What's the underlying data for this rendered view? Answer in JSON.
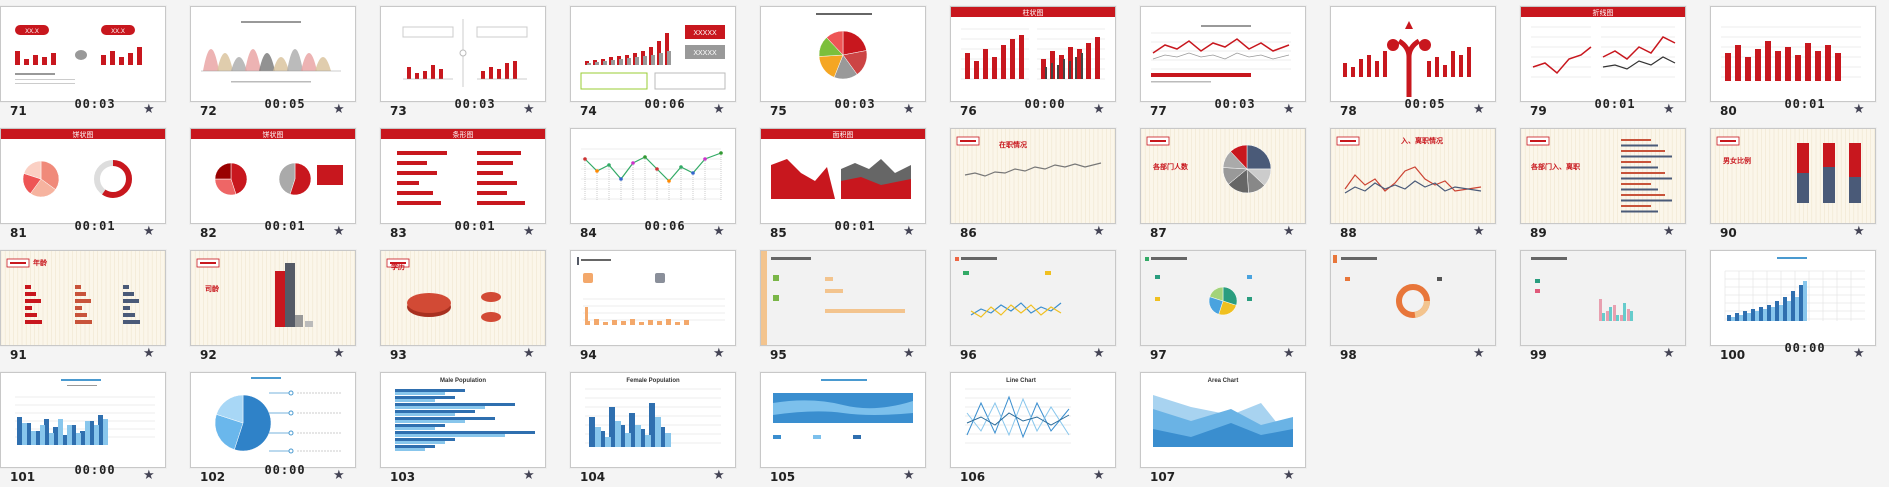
{
  "slides": [
    {
      "num": "71",
      "time": "00:03"
    },
    {
      "num": "72",
      "time": "00:05"
    },
    {
      "num": "73",
      "time": "00:03"
    },
    {
      "num": "74",
      "time": "00:06"
    },
    {
      "num": "75",
      "time": "00:03"
    },
    {
      "num": "76",
      "time": "00:00"
    },
    {
      "num": "77",
      "time": "00:03"
    },
    {
      "num": "78",
      "time": "00:05"
    },
    {
      "num": "79",
      "time": "00:01"
    },
    {
      "num": "80",
      "time": "00:01"
    },
    {
      "num": "81",
      "time": "00:01"
    },
    {
      "num": "82",
      "time": "00:01"
    },
    {
      "num": "83",
      "time": "00:01"
    },
    {
      "num": "84",
      "time": "00:06"
    },
    {
      "num": "85",
      "time": "00:01"
    },
    {
      "num": "86",
      "time": ""
    },
    {
      "num": "87",
      "time": ""
    },
    {
      "num": "88",
      "time": ""
    },
    {
      "num": "89",
      "time": ""
    },
    {
      "num": "90",
      "time": ""
    },
    {
      "num": "91",
      "time": ""
    },
    {
      "num": "92",
      "time": ""
    },
    {
      "num": "93",
      "time": ""
    },
    {
      "num": "94",
      "time": ""
    },
    {
      "num": "95",
      "time": ""
    },
    {
      "num": "96",
      "time": ""
    },
    {
      "num": "97",
      "time": ""
    },
    {
      "num": "98",
      "time": ""
    },
    {
      "num": "99",
      "time": ""
    },
    {
      "num": "100",
      "time": "00:00"
    },
    {
      "num": "101",
      "time": "00:00"
    },
    {
      "num": "102",
      "time": "00:00"
    },
    {
      "num": "103",
      "time": ""
    },
    {
      "num": "104",
      "time": ""
    },
    {
      "num": "105",
      "time": ""
    },
    {
      "num": "106",
      "time": ""
    },
    {
      "num": "107",
      "time": ""
    }
  ],
  "labels": {
    "s71_a": "XX.X",
    "s71_b": "XX.X",
    "s74_a": "XXXXX",
    "s74_b": "XXXXX",
    "s76_title": "柱状图",
    "s79_title": "折线图",
    "s81_title": "饼状图",
    "s82_title": "饼状图",
    "s83_title": "条形图",
    "s85_title": "面积图",
    "s86_title": "在职情况",
    "s87_title": "各部门人数",
    "s88_title": "入、离职情况",
    "s89_title": "各部门入、离职",
    "s90_title": "男女比例",
    "s91_title": "年龄",
    "s92_title": "司龄",
    "s93_title": "学历",
    "s103_title": "Male Population",
    "s104_title": "Female Population",
    "s106_title": "Line Chart",
    "s107_title": "Area Chart"
  },
  "colors": {
    "red": "#c8171e",
    "blue": "#3a8ecf",
    "dark": "#555a66"
  }
}
